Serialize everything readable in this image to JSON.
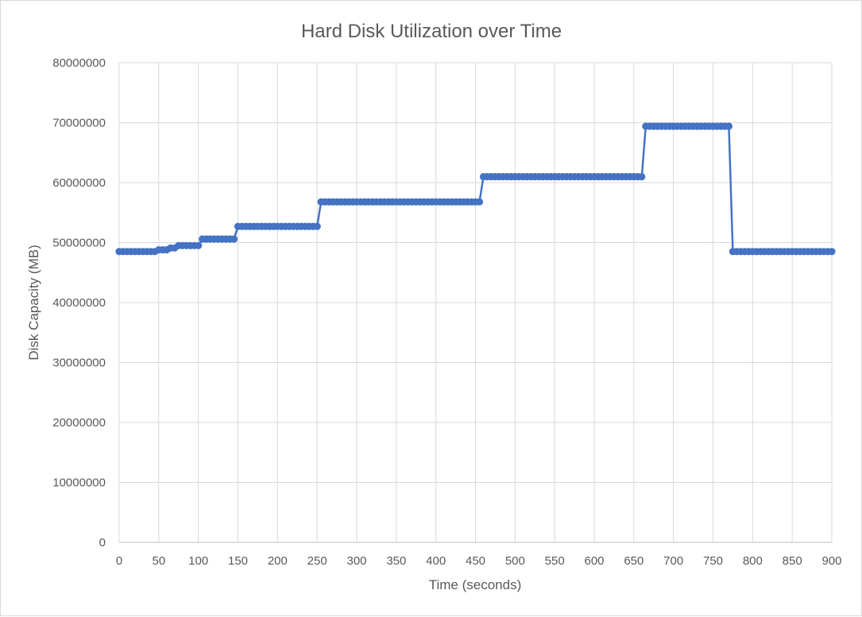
{
  "chart_data": {
    "type": "line",
    "title": "Hard Disk Utilization over Time",
    "xlabel": "Time (seconds)",
    "ylabel": "Disk Capacity (MB)",
    "xlim": [
      0,
      900
    ],
    "ylim": [
      0,
      80000000
    ],
    "xticks": [
      0,
      50,
      100,
      150,
      200,
      250,
      300,
      350,
      400,
      450,
      500,
      550,
      600,
      650,
      700,
      750,
      800,
      850,
      900
    ],
    "yticks": [
      0,
      10000000,
      20000000,
      30000000,
      40000000,
      50000000,
      60000000,
      70000000,
      80000000
    ],
    "ytick_labels": [
      "0",
      "10000000",
      "20000000",
      "30000000",
      "40000000",
      "50000000",
      "60000000",
      "70000000",
      "80000000"
    ],
    "grid": true,
    "legend": "none",
    "series_color": "#4472c4",
    "marker": "circle",
    "segments": [
      {
        "x_start": 0,
        "x_end": 45,
        "y": 48500000
      },
      {
        "x_start": 50,
        "x_end": 60,
        "y": 48800000
      },
      {
        "x_start": 65,
        "x_end": 70,
        "y": 49100000
      },
      {
        "x_start": 75,
        "x_end": 100,
        "y": 49500000
      },
      {
        "x_start": 105,
        "x_end": 145,
        "y": 50600000
      },
      {
        "x_start": 150,
        "x_end": 250,
        "y": 52700000
      },
      {
        "x_start": 255,
        "x_end": 455,
        "y": 56800000
      },
      {
        "x_start": 460,
        "x_end": 660,
        "y": 61000000
      },
      {
        "x_start": 665,
        "x_end": 770,
        "y": 69400000
      },
      {
        "x_start": 775,
        "x_end": 900,
        "y": 48500000
      }
    ]
  }
}
